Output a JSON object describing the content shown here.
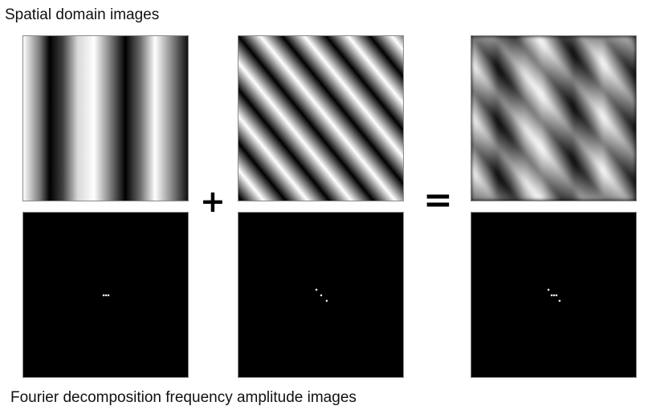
{
  "captions": {
    "spatial": "Spatial domain images",
    "fourier": "Fourier decomposition frequency amplitude images"
  },
  "operators": {
    "plus": "+",
    "equals": "="
  },
  "panels": {
    "spatial_1": {
      "pattern": "vertical-sinusoidal-grating",
      "colors": [
        "#000000",
        "#ffffff"
      ]
    },
    "spatial_2": {
      "pattern": "diagonal-sinusoidal-grating",
      "colors": [
        "#000000",
        "#ffffff"
      ]
    },
    "spatial_3": {
      "pattern": "sum-of-gratings",
      "colors": [
        "#000000",
        "#ffffff"
      ]
    },
    "fourier_1": {
      "pattern": "three-dots-horizontal",
      "background": "#000000",
      "dot_color": "#e6e6e6"
    },
    "fourier_2": {
      "pattern": "three-dots-diagonal",
      "background": "#000000",
      "dot_color": "#e6e6e6"
    },
    "fourier_3": {
      "pattern": "five-dots-combined",
      "background": "#000000",
      "dot_color": "#e6e6e6"
    }
  }
}
